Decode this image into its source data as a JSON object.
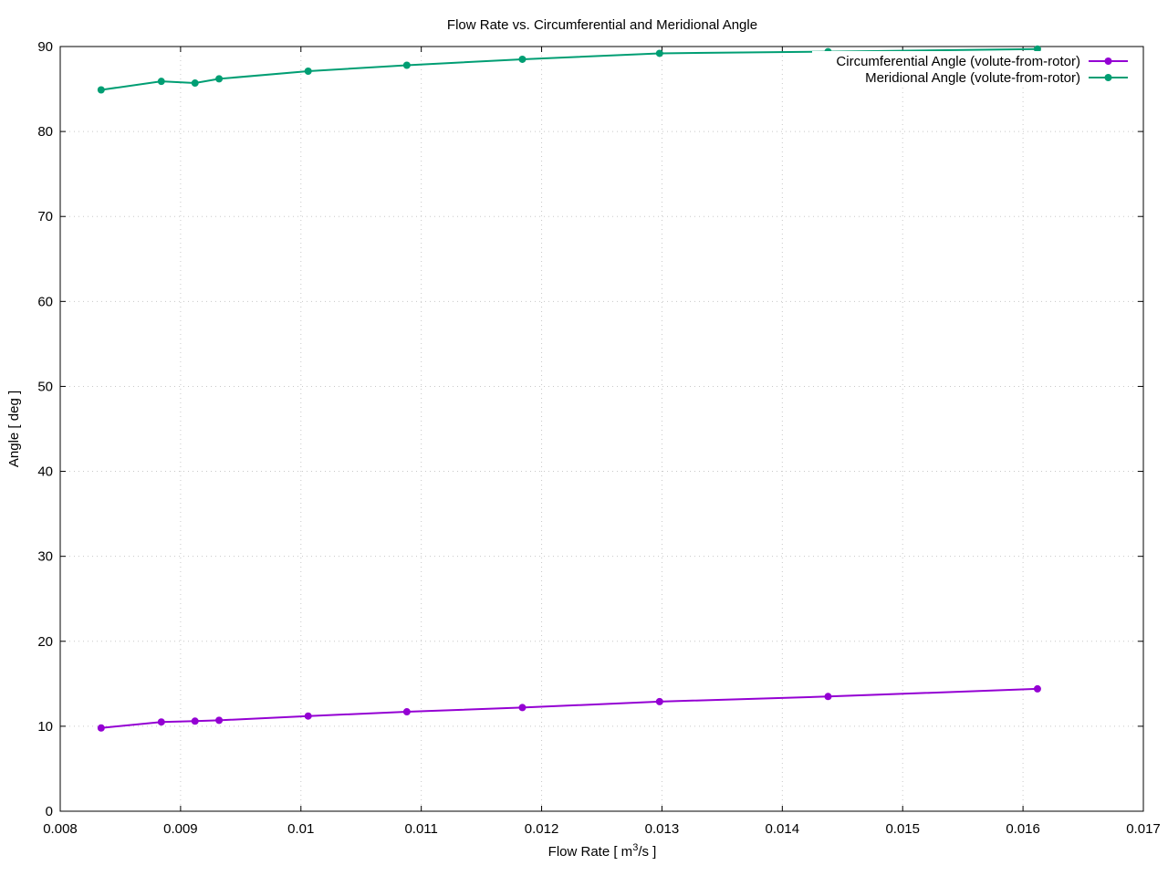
{
  "chart_data": {
    "type": "line",
    "title": "Flow Rate vs. Circumferential and Meridional Angle",
    "xlabel": {
      "prefix": "Flow Rate [ m",
      "superscript": "3",
      "suffix": "/s ]"
    },
    "ylabel": "Angle [ deg ]",
    "xlim": [
      0.008,
      0.017
    ],
    "ylim": [
      0,
      90
    ],
    "x_ticks": [
      "0.008",
      "0.009",
      "0.01",
      "0.011",
      "0.012",
      "0.013",
      "0.014",
      "0.015",
      "0.016",
      "0.017"
    ],
    "y_ticks": [
      "0",
      "10",
      "20",
      "30",
      "40",
      "50",
      "60",
      "70",
      "80",
      "90"
    ],
    "grid": true,
    "legend_position": "top-right",
    "series": [
      {
        "name": "Circumferential Angle (volute-from-rotor)",
        "color": "#9400d3",
        "x": [
          0.00834,
          0.00884,
          0.00912,
          0.00932,
          0.01006,
          0.01088,
          0.01184,
          0.01298,
          0.01438,
          0.01612
        ],
        "y": [
          9.8,
          10.5,
          10.6,
          10.7,
          11.2,
          11.7,
          12.2,
          12.9,
          13.5,
          14.4
        ]
      },
      {
        "name": "Meridional Angle (volute-from-rotor)",
        "color": "#009e73",
        "x": [
          0.00834,
          0.00884,
          0.00912,
          0.00932,
          0.01006,
          0.01088,
          0.01184,
          0.01298,
          0.01438,
          0.01612
        ],
        "y": [
          84.9,
          85.9,
          85.7,
          86.2,
          87.1,
          87.8,
          88.5,
          89.2,
          89.4,
          89.7
        ]
      }
    ]
  }
}
